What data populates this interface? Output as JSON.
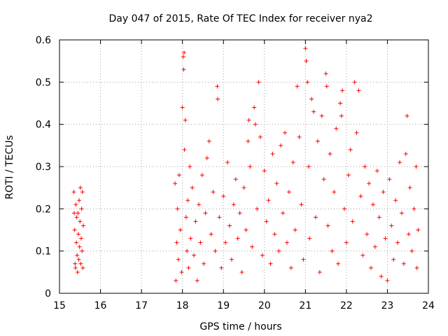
{
  "chart_data": {
    "type": "scatter",
    "title": "Day 047 of 2015, Rate Of TEC Index for receiver nya2",
    "xlabel": "GPS time / hours",
    "ylabel": "ROTI / TECUs",
    "xlim": [
      15,
      24
    ],
    "ylim": [
      0,
      0.6
    ],
    "x_ticks": [
      "15",
      "16",
      "17",
      "18",
      "19",
      "20",
      "21",
      "22",
      "23",
      "24"
    ],
    "y_ticks": [
      "0",
      "0.1",
      "0.2",
      "0.3",
      "0.4",
      "0.5",
      "0.6"
    ],
    "grid": true,
    "marker": "plus",
    "color": "#ff0000",
    "series": [
      {
        "points": [
          [
            15.35,
            0.24
          ],
          [
            15.36,
            0.19
          ],
          [
            15.37,
            0.15
          ],
          [
            15.38,
            0.07
          ],
          [
            15.39,
            0.06
          ],
          [
            15.4,
            0.21
          ],
          [
            15.41,
            0.12
          ],
          [
            15.42,
            0.18
          ],
          [
            15.43,
            0.09
          ],
          [
            15.44,
            0.05
          ],
          [
            15.45,
            0.19
          ],
          [
            15.46,
            0.14
          ],
          [
            15.47,
            0.08
          ],
          [
            15.48,
            0.22
          ],
          [
            15.49,
            0.11
          ],
          [
            15.5,
            0.17
          ],
          [
            15.51,
            0.25
          ],
          [
            15.52,
            0.07
          ],
          [
            15.53,
            0.13
          ],
          [
            15.54,
            0.2
          ],
          [
            15.55,
            0.1
          ],
          [
            15.56,
            0.24
          ],
          [
            15.57,
            0.06
          ],
          [
            15.58,
            0.16
          ],
          [
            17.82,
            0.26
          ],
          [
            17.84,
            0.03
          ],
          [
            17.86,
            0.12
          ],
          [
            17.88,
            0.2
          ],
          [
            17.9,
            0.08
          ],
          [
            17.92,
            0.28
          ],
          [
            17.95,
            0.15
          ],
          [
            17.98,
            0.05
          ],
          [
            18.0,
            0.44
          ],
          [
            18.02,
            0.56
          ],
          [
            18.03,
            0.53
          ],
          [
            18.04,
            0.57
          ],
          [
            18.05,
            0.34
          ],
          [
            18.07,
            0.41
          ],
          [
            18.09,
            0.18
          ],
          [
            18.11,
            0.1
          ],
          [
            18.13,
            0.22
          ],
          [
            18.15,
            0.06
          ],
          [
            18.18,
            0.3
          ],
          [
            18.2,
            0.13
          ],
          [
            18.24,
            0.25
          ],
          [
            18.28,
            0.09
          ],
          [
            18.32,
            0.17
          ],
          [
            18.36,
            0.03
          ],
          [
            18.4,
            0.21
          ],
          [
            18.44,
            0.12
          ],
          [
            18.48,
            0.28
          ],
          [
            18.52,
            0.07
          ],
          [
            18.56,
            0.19
          ],
          [
            18.6,
            0.32
          ],
          [
            18.65,
            0.36
          ],
          [
            18.7,
            0.14
          ],
          [
            18.75,
            0.24
          ],
          [
            18.8,
            0.1
          ],
          [
            18.85,
            0.49
          ],
          [
            18.86,
            0.46
          ],
          [
            18.9,
            0.18
          ],
          [
            18.95,
            0.06
          ],
          [
            19.0,
            0.23
          ],
          [
            19.05,
            0.12
          ],
          [
            19.1,
            0.31
          ],
          [
            19.15,
            0.16
          ],
          [
            19.2,
            0.08
          ],
          [
            19.25,
            0.21
          ],
          [
            19.3,
            0.27
          ],
          [
            19.35,
            0.13
          ],
          [
            19.4,
            0.19
          ],
          [
            19.45,
            0.05
          ],
          [
            19.5,
            0.25
          ],
          [
            19.55,
            0.15
          ],
          [
            19.6,
            0.36
          ],
          [
            19.62,
            0.41
          ],
          [
            19.65,
            0.3
          ],
          [
            19.7,
            0.11
          ],
          [
            19.75,
            0.44
          ],
          [
            19.78,
            0.4
          ],
          [
            19.82,
            0.2
          ],
          [
            19.86,
            0.5
          ],
          [
            19.9,
            0.37
          ],
          [
            19.95,
            0.09
          ],
          [
            20.0,
            0.29
          ],
          [
            20.05,
            0.17
          ],
          [
            20.1,
            0.22
          ],
          [
            20.15,
            0.07
          ],
          [
            20.2,
            0.33
          ],
          [
            20.25,
            0.14
          ],
          [
            20.3,
            0.26
          ],
          [
            20.35,
            0.1
          ],
          [
            20.4,
            0.35
          ],
          [
            20.45,
            0.19
          ],
          [
            20.5,
            0.38
          ],
          [
            20.55,
            0.12
          ],
          [
            20.6,
            0.24
          ],
          [
            20.65,
            0.06
          ],
          [
            20.7,
            0.31
          ],
          [
            20.75,
            0.15
          ],
          [
            20.8,
            0.49
          ],
          [
            20.85,
            0.37
          ],
          [
            20.9,
            0.21
          ],
          [
            20.95,
            0.08
          ],
          [
            21.0,
            0.58
          ],
          [
            21.02,
            0.55
          ],
          [
            21.05,
            0.5
          ],
          [
            21.08,
            0.3
          ],
          [
            21.1,
            0.13
          ],
          [
            21.15,
            0.46
          ],
          [
            21.2,
            0.43
          ],
          [
            21.25,
            0.18
          ],
          [
            21.3,
            0.36
          ],
          [
            21.35,
            0.05
          ],
          [
            21.4,
            0.42
          ],
          [
            21.45,
            0.27
          ],
          [
            21.5,
            0.52
          ],
          [
            21.52,
            0.49
          ],
          [
            21.55,
            0.16
          ],
          [
            21.6,
            0.33
          ],
          [
            21.65,
            0.1
          ],
          [
            21.7,
            0.24
          ],
          [
            21.75,
            0.39
          ],
          [
            21.8,
            0.07
          ],
          [
            21.85,
            0.45
          ],
          [
            21.88,
            0.42
          ],
          [
            21.9,
            0.48
          ],
          [
            21.95,
            0.2
          ],
          [
            22.0,
            0.12
          ],
          [
            22.05,
            0.28
          ],
          [
            22.1,
            0.34
          ],
          [
            22.15,
            0.17
          ],
          [
            22.2,
            0.5
          ],
          [
            22.25,
            0.38
          ],
          [
            22.3,
            0.48
          ],
          [
            22.35,
            0.23
          ],
          [
            22.4,
            0.09
          ],
          [
            22.45,
            0.3
          ],
          [
            22.5,
            0.14
          ],
          [
            22.55,
            0.26
          ],
          [
            22.6,
            0.06
          ],
          [
            22.65,
            0.21
          ],
          [
            22.7,
            0.11
          ],
          [
            22.75,
            0.29
          ],
          [
            22.8,
            0.18
          ],
          [
            22.85,
            0.04
          ],
          [
            22.9,
            0.24
          ],
          [
            22.95,
            0.13
          ],
          [
            23.0,
            0.03
          ],
          [
            23.05,
            0.27
          ],
          [
            23.1,
            0.16
          ],
          [
            23.15,
            0.08
          ],
          [
            23.2,
            0.22
          ],
          [
            23.25,
            0.12
          ],
          [
            23.3,
            0.31
          ],
          [
            23.35,
            0.19
          ],
          [
            23.4,
            0.07
          ],
          [
            23.45,
            0.33
          ],
          [
            23.48,
            0.42
          ],
          [
            23.52,
            0.14
          ],
          [
            23.55,
            0.25
          ],
          [
            23.6,
            0.1
          ],
          [
            23.65,
            0.2
          ],
          [
            23.7,
            0.3
          ],
          [
            23.72,
            0.06
          ],
          [
            23.75,
            0.15
          ]
        ]
      }
    ]
  }
}
